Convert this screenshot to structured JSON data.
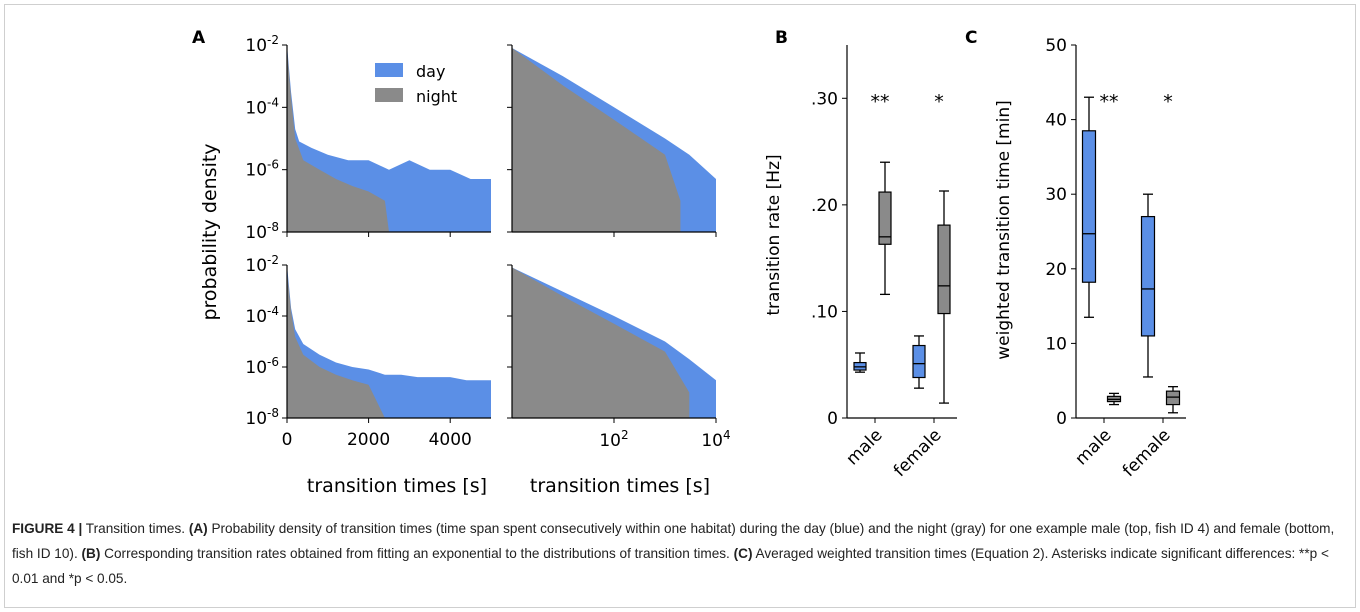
{
  "colors": {
    "day": "#5b8fe6",
    "night": "#8a8a8a",
    "axis": "#000000",
    "caption": "#222222"
  },
  "panel_labels": [
    "A",
    "B",
    "C"
  ],
  "legend": {
    "day": "day",
    "night": "night"
  },
  "ylabel_A": "probability density",
  "caption": {
    "prefix": "FIGURE 4 |",
    "title": " Transition times. ",
    "a_label": "(A)",
    "a_text": " Probability density of transition times (time span spent consecutively within one habitat) during the day (blue) and the night (gray) for one example male (top, fish ID 4) and female (bottom, fish ID 10). ",
    "b_label": "(B)",
    "b_text": " Corresponding transition rates obtained from fitting an exponential to the distributions of transition times. ",
    "c_label": "(C)",
    "c_text": " Averaged weighted transition times (Equation 2). Asterisks indicate significant differences: **p < 0.01 and *p < 0.05."
  },
  "chart_data": [
    {
      "panel": "A-top-left",
      "type": "area",
      "xlabel": "",
      "ylabel": "probability density",
      "xlim": [
        0,
        5000
      ],
      "yscale": "log",
      "ylim": [
        1e-08,
        0.01
      ],
      "yticks": [
        "10^-2",
        "10^-4",
        "10^-6",
        "10^-8"
      ],
      "series": [
        {
          "name": "day",
          "x": [
            0,
            100,
            200,
            300,
            600,
            1000,
            1500,
            2000,
            2500,
            3000,
            3500,
            4000,
            4500,
            5000
          ],
          "y": [
            0.01,
            0.0003,
            2e-05,
            8e-06,
            5e-06,
            3e-06,
            2e-06,
            2e-06,
            1e-06,
            2e-06,
            1e-06,
            1e-06,
            5e-07,
            5e-07
          ]
        },
        {
          "name": "night",
          "x": [
            0,
            100,
            200,
            400,
            800,
            1200,
            1600,
            2000,
            2400,
            2500
          ],
          "y": [
            0.008,
            0.0002,
            1e-05,
            2e-06,
            1e-06,
            5e-07,
            3e-07,
            2e-07,
            1e-07,
            1e-08
          ]
        }
      ]
    },
    {
      "panel": "A-top-right",
      "type": "area",
      "xscale": "log",
      "xlim": [
        1,
        10000
      ],
      "yscale": "log",
      "ylim": [
        1e-08,
        0.01
      ],
      "series": [
        {
          "name": "day",
          "x": [
            1,
            10,
            100,
            1000,
            3000,
            10000
          ],
          "y": [
            0.008,
            0.001,
            0.0001,
            1e-05,
            3e-06,
            5e-07
          ]
        },
        {
          "name": "night",
          "x": [
            1,
            10,
            100,
            1000,
            2000
          ],
          "y": [
            0.008,
            0.0005,
            4e-05,
            3e-06,
            1e-07
          ]
        }
      ]
    },
    {
      "panel": "A-bottom-left",
      "type": "area",
      "xlabel": "transition times [s]",
      "xlim": [
        0,
        5000
      ],
      "xticks": [
        "0",
        "2000",
        "4000"
      ],
      "yscale": "log",
      "ylim": [
        1e-08,
        0.01
      ],
      "yticks": [
        "10^-2",
        "10^-4",
        "10^-6",
        "10^-8"
      ],
      "series": [
        {
          "name": "day",
          "x": [
            0,
            100,
            200,
            400,
            800,
            1200,
            1600,
            2000,
            2400,
            2800,
            3200,
            3600,
            4000,
            4400,
            5000
          ],
          "y": [
            0.01,
            0.0002,
            3e-05,
            8e-06,
            3e-06,
            1.5e-06,
            1e-06,
            8e-07,
            5e-07,
            5e-07,
            4e-07,
            4e-07,
            4e-07,
            3e-07,
            3e-07
          ]
        },
        {
          "name": "night",
          "x": [
            0,
            100,
            200,
            400,
            800,
            1200,
            1600,
            2000,
            2400
          ],
          "y": [
            0.006,
            0.00015,
            1.5e-05,
            3e-06,
            1e-06,
            5e-07,
            3e-07,
            2e-07,
            1e-08
          ]
        }
      ]
    },
    {
      "panel": "A-bottom-right",
      "type": "area",
      "xlabel": "transition times [s]",
      "xscale": "log",
      "xlim": [
        1,
        10000
      ],
      "xticks": [
        "10^2",
        "10^4"
      ],
      "yscale": "log",
      "ylim": [
        1e-08,
        0.01
      ],
      "series": [
        {
          "name": "day",
          "x": [
            1,
            10,
            100,
            1000,
            3000,
            10000
          ],
          "y": [
            0.008,
            0.0009,
            0.0001,
            1e-05,
            2e-06,
            3e-07
          ]
        },
        {
          "name": "night",
          "x": [
            1,
            10,
            100,
            1000,
            3000
          ],
          "y": [
            0.008,
            0.0006,
            5e-05,
            4e-06,
            1e-07
          ]
        }
      ]
    },
    {
      "panel": "B",
      "type": "box",
      "ylabel": "transition rate [Hz]",
      "ylim": [
        0,
        0.35
      ],
      "yticks": [
        ".30",
        ".20",
        ".10",
        "0"
      ],
      "categories": [
        "male",
        "female"
      ],
      "significance": [
        "**",
        "*"
      ],
      "series": [
        {
          "name": "day",
          "boxes": [
            {
              "min": 0.043,
              "q1": 0.045,
              "median": 0.048,
              "q3": 0.052,
              "max": 0.061
            },
            {
              "min": 0.028,
              "q1": 0.038,
              "median": 0.051,
              "q3": 0.068,
              "max": 0.077
            }
          ]
        },
        {
          "name": "night",
          "boxes": [
            {
              "min": 0.116,
              "q1": 0.163,
              "median": 0.17,
              "q3": 0.212,
              "max": 0.24
            },
            {
              "min": 0.014,
              "q1": 0.098,
              "median": 0.124,
              "q3": 0.181,
              "max": 0.213
            }
          ]
        }
      ]
    },
    {
      "panel": "C",
      "type": "box",
      "ylabel": "weighted transition time [min]",
      "ylim": [
        0,
        50
      ],
      "yticks": [
        "50",
        "40",
        "30",
        "20",
        "10",
        "0"
      ],
      "categories": [
        "male",
        "female"
      ],
      "significance": [
        "**",
        "*"
      ],
      "series": [
        {
          "name": "day",
          "boxes": [
            {
              "min": 13.5,
              "q1": 18.2,
              "median": 24.7,
              "q3": 38.5,
              "max": 43.0
            },
            {
              "min": 5.5,
              "q1": 11.0,
              "median": 17.3,
              "q3": 27.0,
              "max": 30.0
            }
          ]
        },
        {
          "name": "night",
          "boxes": [
            {
              "min": 1.8,
              "q1": 2.2,
              "median": 2.5,
              "q3": 2.9,
              "max": 3.3
            },
            {
              "min": 0.7,
              "q1": 1.8,
              "median": 2.8,
              "q3": 3.6,
              "max": 4.2
            }
          ]
        }
      ]
    }
  ]
}
